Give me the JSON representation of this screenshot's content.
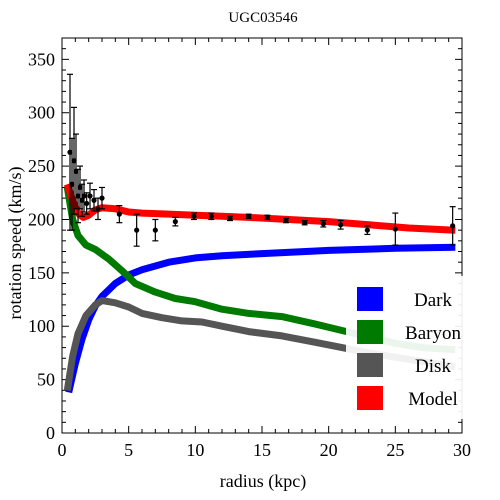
{
  "chart_data": {
    "type": "line",
    "title": "UGC03546",
    "xlabel": "radius (kpc)",
    "ylabel": "rotation speed (km/s)",
    "xlim": [
      0,
      30
    ],
    "ylim": [
      0,
      370
    ],
    "x_ticks": [
      0,
      5,
      10,
      15,
      20,
      25,
      30
    ],
    "y_ticks": [
      0,
      50,
      100,
      150,
      200,
      250,
      300,
      350
    ],
    "grid": false,
    "legend_position": "bottom-right",
    "series": [
      {
        "name": "Dark",
        "color": "#0000ff",
        "x": [
          0.5,
          1.0,
          1.5,
          2.0,
          2.5,
          3.0,
          4.0,
          5.0,
          6.0,
          8.0,
          10.0,
          12.0,
          15.0,
          20.0,
          25.0,
          29.5
        ],
        "y": [
          38,
          65,
          88,
          106,
          119,
          128,
          140,
          148,
          153,
          160,
          164,
          166,
          168,
          171,
          173,
          174
        ]
      },
      {
        "name": "Baryon",
        "color": "#007a00",
        "x": [
          0.4,
          0.8,
          1.2,
          1.8,
          2.5,
          3.5,
          4.5,
          5.5,
          7.0,
          8.5,
          10.0,
          12.0,
          14.0,
          16.5,
          19.0,
          21.0,
          23.0,
          25.0,
          27.0,
          29.5
        ],
        "y": [
          230,
          200,
          185,
          176,
          172,
          163,
          152,
          140,
          132,
          126,
          123,
          116,
          112,
          109,
          102,
          96,
          90,
          84,
          80,
          78
        ]
      },
      {
        "name": "Disk",
        "color": "#555555",
        "x": [
          0.4,
          0.8,
          1.2,
          1.8,
          2.5,
          3.0,
          4.0,
          5.0,
          6.0,
          7.5,
          9.0,
          10.5,
          12.0,
          14.0,
          16.5,
          19.0,
          21.0,
          23.0,
          25.0,
          27.0,
          29.5
        ],
        "y": [
          40,
          72,
          93,
          110,
          120,
          124,
          122,
          118,
          112,
          108,
          105,
          104,
          100,
          95,
          91,
          85,
          80,
          75,
          71,
          67,
          62
        ]
      },
      {
        "name": "Model",
        "color": "#ff0000",
        "x": [
          0.4,
          0.8,
          1.2,
          1.6,
          2.0,
          2.5,
          3.0,
          4.0,
          5.0,
          6.0,
          8.0,
          10.0,
          12.0,
          14.0,
          17.0,
          20.0,
          23.0,
          26.0,
          29.5
        ],
        "y": [
          233,
          218,
          206,
          202,
          204,
          209,
          211,
          210,
          207,
          206,
          205,
          204,
          203,
          202,
          200,
          198,
          195,
          192,
          190
        ]
      }
    ],
    "observations": {
      "x": [
        0.6,
        0.75,
        0.9,
        1.05,
        1.2,
        1.35,
        1.5,
        1.65,
        1.85,
        2.1,
        2.4,
        2.7,
        3.0,
        4.3,
        5.6,
        7.0,
        8.5,
        9.9,
        11.2,
        12.6,
        14.0,
        15.4,
        16.8,
        18.2,
        19.6,
        20.9,
        22.9,
        25.0,
        29.3
      ],
      "y": [
        263,
        233,
        255,
        245,
        222,
        230,
        218,
        222,
        215,
        222,
        218,
        210,
        220,
        205,
        190,
        190,
        198,
        203,
        203,
        201,
        203,
        202,
        199,
        197,
        196,
        195,
        190,
        191,
        194
      ],
      "err": [
        73,
        43,
        50,
        35,
        25,
        20,
        15,
        15,
        10,
        12,
        10,
        10,
        10,
        8,
        15,
        10,
        4,
        3,
        3,
        2,
        2,
        2,
        2,
        2,
        3,
        4,
        4,
        15,
        18
      ]
    }
  }
}
